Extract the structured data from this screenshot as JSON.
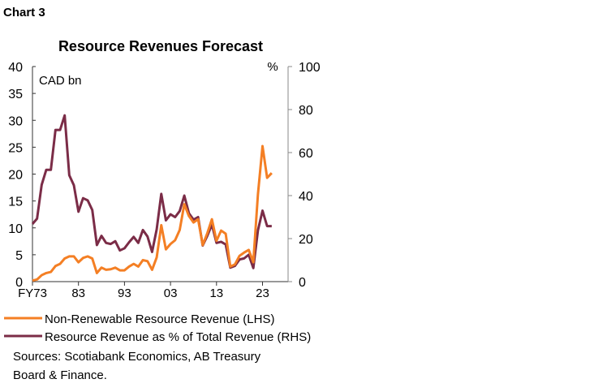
{
  "header": "Chart 3",
  "chart_data": {
    "type": "line",
    "title": "Resource Revenues Forecast",
    "left_unit": "CAD bn",
    "right_unit": "%",
    "x_start_year": 1973,
    "x_ticks": [
      "FY73",
      "83",
      "93",
      "03",
      "13",
      "23"
    ],
    "left_ylim": [
      0,
      40
    ],
    "left_ticks": [
      "0",
      "5",
      "10",
      "15",
      "20",
      "25",
      "30",
      "35",
      "40"
    ],
    "right_ylim": [
      0,
      100
    ],
    "right_ticks": [
      "0",
      "20",
      "40",
      "60",
      "80",
      "100"
    ],
    "grid": false,
    "legend_placement": "bottom",
    "series": [
      {
        "name": "Non-Renewable Resource Revenue (LHS)",
        "axis": "left",
        "color": "#f47f24",
        "values": [
          0.2,
          0.4,
          1.2,
          1.6,
          1.8,
          2.9,
          3.3,
          4.3,
          4.7,
          4.7,
          3.6,
          4.4,
          4.7,
          4.3,
          1.6,
          2.6,
          2.2,
          2.3,
          2.6,
          2.1,
          2.1,
          2.8,
          3.3,
          2.8,
          4.0,
          3.8,
          2.2,
          4.5,
          10.5,
          6.0,
          7.0,
          7.7,
          9.6,
          14.4,
          12.2,
          11.0,
          11.6,
          6.8,
          9.0,
          11.6,
          7.6,
          9.5,
          8.9,
          2.8,
          3.2,
          4.8,
          5.4,
          5.9,
          3.6,
          16.2,
          25.2,
          19.3,
          20.2
        ]
      },
      {
        "name": "Resource Revenue as % of Total Revenue (RHS)",
        "axis": "right",
        "color": "#7b2c47",
        "values": [
          26.8,
          29.3,
          45,
          52,
          52,
          70.5,
          70.5,
          77.3,
          49.5,
          44.8,
          32.5,
          38.8,
          37.8,
          33.3,
          17,
          21.3,
          18,
          17.5,
          18.8,
          14.5,
          15.5,
          18.3,
          20.8,
          18,
          24,
          21,
          13.8,
          24.3,
          40.8,
          28.5,
          31.3,
          30,
          32.8,
          40,
          31.8,
          28.8,
          30,
          16.8,
          21.3,
          26.5,
          18,
          18.5,
          17.3,
          6.5,
          7.3,
          10.3,
          10.8,
          12.5,
          6.3,
          23.8,
          33,
          25.8,
          25.8
        ]
      }
    ]
  },
  "sources": [
    "Sources: Scotiabank Economics, AB Treasury",
    "Board & Finance."
  ]
}
